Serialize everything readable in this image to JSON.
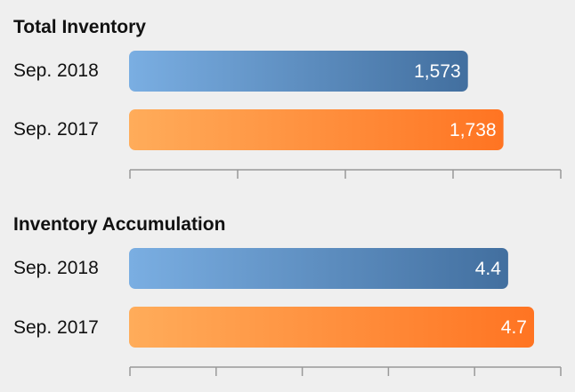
{
  "chart_data": [
    {
      "type": "bar",
      "orientation": "horizontal",
      "title": "Total Inventory",
      "categories": [
        "Sep. 2018",
        "Sep. 2017"
      ],
      "values": [
        1573,
        1738
      ],
      "value_labels": [
        "1,573",
        "1,738"
      ],
      "colors": [
        "#5b8ec6",
        "#ff8b33"
      ],
      "xlim": [
        0,
        2000
      ],
      "tick_count": 5,
      "grid": false
    },
    {
      "type": "bar",
      "orientation": "horizontal",
      "title": "Inventory Accumulation",
      "categories": [
        "Sep. 2018",
        "Sep. 2017"
      ],
      "values": [
        4.4,
        4.7
      ],
      "value_labels": [
        "4.4",
        "4.7"
      ],
      "colors": [
        "#5b8ec6",
        "#ff8b33"
      ],
      "xlim": [
        0,
        5
      ],
      "tick_count": 6,
      "grid": false
    }
  ]
}
